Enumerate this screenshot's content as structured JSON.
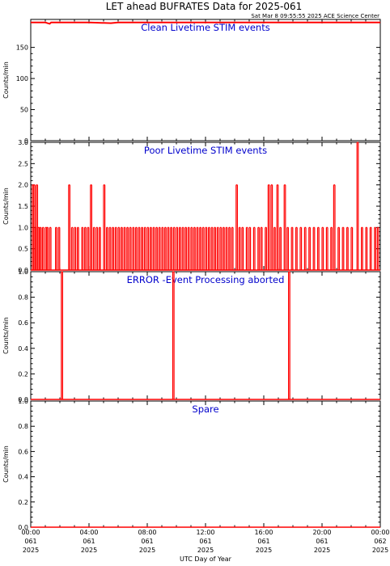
{
  "title": "LET ahead BUFRATES Data for 2025-061",
  "subtitle": "Sat Mar  8 09:55:55 2025 ACE Science Center",
  "xlabel": "UTC Day of Year",
  "x_ticks": [
    {
      "time": "00:00",
      "doy": "061",
      "year": "2025"
    },
    {
      "time": "04:00",
      "doy": "061",
      "year": "2025"
    },
    {
      "time": "08:00",
      "doy": "061",
      "year": "2025"
    },
    {
      "time": "12:00",
      "doy": "061",
      "year": "2025"
    },
    {
      "time": "16:00",
      "doy": "061",
      "year": "2025"
    },
    {
      "time": "20:00",
      "doy": "061",
      "year": "2025"
    },
    {
      "time": "00:00",
      "doy": "062",
      "year": "2025"
    }
  ],
  "colors": {
    "data": "#ff0000",
    "panel_title": "#0000cc",
    "axis": "#000000"
  },
  "chart_data": [
    {
      "type": "line",
      "title": "Clean Livetime STIM events",
      "ylabel": "Counts/min",
      "xlim_hours": [
        0,
        24
      ],
      "ylim": [
        0,
        195
      ],
      "yticks": [
        0,
        50,
        100,
        150
      ],
      "series": [
        {
          "x_hours": [
            0,
            1,
            1.3,
            1.4,
            2,
            4,
            5.5,
            6,
            8,
            10,
            12,
            14,
            16,
            18,
            20,
            22,
            24
          ],
          "values": [
            190,
            190,
            188,
            190,
            190,
            190,
            189,
            190,
            190,
            190,
            190,
            190,
            190,
            190,
            190,
            190,
            190
          ]
        }
      ]
    },
    {
      "type": "line",
      "title": "Poor Livetime STIM events",
      "ylabel": "Counts/min",
      "xlim_hours": [
        0,
        24
      ],
      "ylim": [
        0,
        3
      ],
      "yticks": [
        "0.0",
        "0.5",
        "1.0",
        "1.5",
        "2.0",
        "2.5",
        "3.0"
      ],
      "spikes": [
        {
          "x_hours": 0.1,
          "value": 2
        },
        {
          "x_hours": 0.2,
          "value": 2
        },
        {
          "x_hours": 0.28,
          "value": 1
        },
        {
          "x_hours": 0.38,
          "value": 2
        },
        {
          "x_hours": 0.5,
          "value": 1
        },
        {
          "x_hours": 0.62,
          "value": 1
        },
        {
          "x_hours": 0.8,
          "value": 1
        },
        {
          "x_hours": 1.0,
          "value": 1
        },
        {
          "x_hours": 1.1,
          "value": 1
        },
        {
          "x_hours": 1.3,
          "value": 1
        },
        {
          "x_hours": 1.7,
          "value": 1
        },
        {
          "x_hours": 1.9,
          "value": 1
        },
        {
          "x_hours": 2.6,
          "value": 2
        },
        {
          "x_hours": 2.8,
          "value": 1
        },
        {
          "x_hours": 3.0,
          "value": 1
        },
        {
          "x_hours": 3.2,
          "value": 1
        },
        {
          "x_hours": 3.5,
          "value": 1
        },
        {
          "x_hours": 3.7,
          "value": 1
        },
        {
          "x_hours": 3.9,
          "value": 1
        },
        {
          "x_hours": 4.1,
          "value": 2
        },
        {
          "x_hours": 4.3,
          "value": 1
        },
        {
          "x_hours": 4.5,
          "value": 1
        },
        {
          "x_hours": 4.7,
          "value": 1
        },
        {
          "x_hours": 5.0,
          "value": 2
        },
        {
          "x_hours": 5.2,
          "value": 1
        },
        {
          "x_hours": 5.4,
          "value": 1
        },
        {
          "x_hours": 5.6,
          "value": 1
        },
        {
          "x_hours": 5.8,
          "value": 1
        },
        {
          "x_hours": 6.0,
          "value": 1
        },
        {
          "x_hours": 6.2,
          "value": 1
        },
        {
          "x_hours": 6.4,
          "value": 1
        },
        {
          "x_hours": 6.6,
          "value": 1
        },
        {
          "x_hours": 6.8,
          "value": 1
        },
        {
          "x_hours": 7.0,
          "value": 1
        },
        {
          "x_hours": 7.2,
          "value": 1
        },
        {
          "x_hours": 7.4,
          "value": 1
        },
        {
          "x_hours": 7.6,
          "value": 1
        },
        {
          "x_hours": 7.8,
          "value": 1
        },
        {
          "x_hours": 8.0,
          "value": 1
        },
        {
          "x_hours": 8.2,
          "value": 1
        },
        {
          "x_hours": 8.4,
          "value": 1
        },
        {
          "x_hours": 8.6,
          "value": 1
        },
        {
          "x_hours": 8.8,
          "value": 1
        },
        {
          "x_hours": 9.0,
          "value": 1
        },
        {
          "x_hours": 9.2,
          "value": 1
        },
        {
          "x_hours": 9.4,
          "value": 1
        },
        {
          "x_hours": 9.6,
          "value": 1
        },
        {
          "x_hours": 9.8,
          "value": 1
        },
        {
          "x_hours": 10.0,
          "value": 1
        },
        {
          "x_hours": 10.2,
          "value": 1
        },
        {
          "x_hours": 10.4,
          "value": 1
        },
        {
          "x_hours": 10.6,
          "value": 1
        },
        {
          "x_hours": 10.8,
          "value": 1
        },
        {
          "x_hours": 11.0,
          "value": 1
        },
        {
          "x_hours": 11.2,
          "value": 1
        },
        {
          "x_hours": 11.4,
          "value": 1
        },
        {
          "x_hours": 11.6,
          "value": 1
        },
        {
          "x_hours": 11.8,
          "value": 1
        },
        {
          "x_hours": 12.0,
          "value": 1
        },
        {
          "x_hours": 12.2,
          "value": 1
        },
        {
          "x_hours": 12.4,
          "value": 1
        },
        {
          "x_hours": 12.6,
          "value": 1
        },
        {
          "x_hours": 12.8,
          "value": 1
        },
        {
          "x_hours": 13.0,
          "value": 1
        },
        {
          "x_hours": 13.2,
          "value": 1
        },
        {
          "x_hours": 13.4,
          "value": 1
        },
        {
          "x_hours": 13.6,
          "value": 1
        },
        {
          "x_hours": 13.8,
          "value": 1
        },
        {
          "x_hours": 14.1,
          "value": 2
        },
        {
          "x_hours": 14.3,
          "value": 1
        },
        {
          "x_hours": 14.5,
          "value": 1
        },
        {
          "x_hours": 14.8,
          "value": 1
        },
        {
          "x_hours": 15.0,
          "value": 1
        },
        {
          "x_hours": 15.3,
          "value": 1
        },
        {
          "x_hours": 15.6,
          "value": 1
        },
        {
          "x_hours": 15.8,
          "value": 1
        },
        {
          "x_hours": 16.1,
          "value": 1
        },
        {
          "x_hours": 16.3,
          "value": 2
        },
        {
          "x_hours": 16.5,
          "value": 2
        },
        {
          "x_hours": 16.7,
          "value": 1
        },
        {
          "x_hours": 16.9,
          "value": 2
        },
        {
          "x_hours": 17.1,
          "value": 1
        },
        {
          "x_hours": 17.4,
          "value": 2
        },
        {
          "x_hours": 17.6,
          "value": 1
        },
        {
          "x_hours": 17.9,
          "value": 1
        },
        {
          "x_hours": 18.2,
          "value": 1
        },
        {
          "x_hours": 18.5,
          "value": 1
        },
        {
          "x_hours": 18.8,
          "value": 1
        },
        {
          "x_hours": 19.1,
          "value": 1
        },
        {
          "x_hours": 19.4,
          "value": 1
        },
        {
          "x_hours": 19.7,
          "value": 1
        },
        {
          "x_hours": 20.0,
          "value": 1
        },
        {
          "x_hours": 20.3,
          "value": 1
        },
        {
          "x_hours": 20.6,
          "value": 1
        },
        {
          "x_hours": 20.8,
          "value": 2
        },
        {
          "x_hours": 21.1,
          "value": 1
        },
        {
          "x_hours": 21.4,
          "value": 1
        },
        {
          "x_hours": 21.7,
          "value": 1
        },
        {
          "x_hours": 22.0,
          "value": 1
        },
        {
          "x_hours": 22.4,
          "value": 3
        },
        {
          "x_hours": 22.7,
          "value": 1
        },
        {
          "x_hours": 23.0,
          "value": 1
        },
        {
          "x_hours": 23.3,
          "value": 1
        },
        {
          "x_hours": 23.6,
          "value": 1
        },
        {
          "x_hours": 23.8,
          "value": 1
        }
      ]
    },
    {
      "type": "line",
      "title": "ERROR -Event Processing aborted",
      "ylabel": "Counts/min",
      "xlim_hours": [
        0,
        24
      ],
      "ylim": [
        0,
        1
      ],
      "yticks": [
        "0.0",
        "0.2",
        "0.4",
        "0.6",
        "0.8",
        "1.0"
      ],
      "spikes": [
        {
          "x_hours": 2.1,
          "value": 1
        },
        {
          "x_hours": 9.75,
          "value": 1
        },
        {
          "x_hours": 17.7,
          "value": 1
        }
      ]
    },
    {
      "type": "line",
      "title": "Spare",
      "ylabel": "Counts/min",
      "xlim_hours": [
        0,
        24
      ],
      "ylim": [
        0,
        1
      ],
      "yticks": [
        "0.0",
        "0.2",
        "0.4",
        "0.6",
        "0.8",
        "1.0"
      ],
      "spikes": []
    }
  ]
}
